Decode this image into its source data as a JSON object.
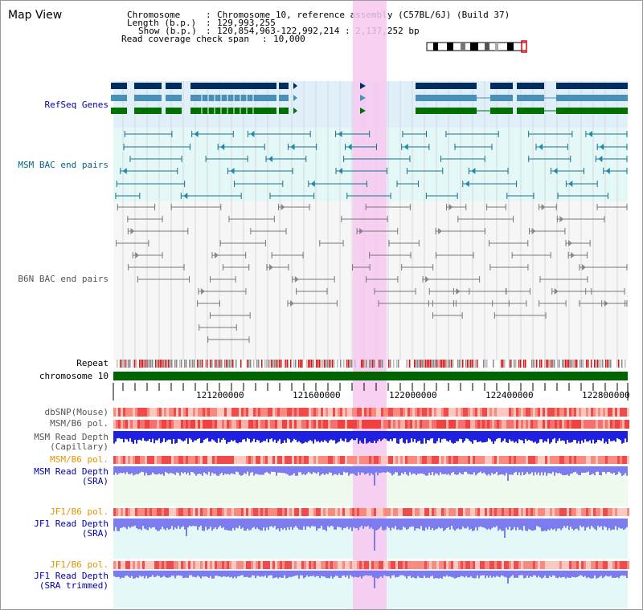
{
  "title": "Map View",
  "info": {
    "chromosome_key": "Chromosome",
    "chromosome_value": "Chromosome 10, reference assembly (C57BL/6J) (Build 37)",
    "length_key": "Length (b.p.)",
    "length_value": "129,993,255",
    "show_key": "Show (b.p.)",
    "show_value": "120,854,963-122,992,214 : 2,137,252 bp",
    "coverage_key": "Read coverage check span",
    "coverage_value": "10,000"
  },
  "tracks": {
    "refseq": "RefSeq Genes",
    "msm_bac": "MSM BAC end pairs",
    "b6n_bac": "B6N BAC end pairs",
    "repeat": "Repeat",
    "chromosome": "chromosome 10",
    "dbsnp": "dbSNP(Mouse)",
    "msm_b6_pol_1": "MSM/B6 pol.",
    "msm_depth_cap_1": "MSM Read Depth",
    "msm_depth_cap_2": "(Capillary)",
    "msm_b6_pol_2": "MSM/B6 pol.",
    "msm_depth_sra_1": "MSM Read Depth",
    "msm_depth_sra_2": "(SRA)",
    "jf1_b6_pol_1": "JF1/B6 pol.",
    "jf1_depth_sra_1": "JF1 Read Depth",
    "jf1_depth_sra_2": "(SRA)",
    "jf1_b6_pol_2": "JF1/B6 pol.",
    "jf1_depth_trim_1": "JF1 Read Depth",
    "jf1_depth_trim_2": "(SRA trimmed)"
  },
  "axis_ticks": [
    "121200000",
    "121600000",
    "122000000",
    "122400000",
    "122800000"
  ],
  "colors": {
    "refseq_navy": "#002d5f",
    "refseq_light": "#4a8fb5",
    "refseq_green": "#007000",
    "highlight": "#f7c8f0",
    "chromosome_bar": "#006400",
    "snp_red": "#ef3c3c",
    "depth_blue": "#2020e0",
    "depth_light": "#7c7cf0"
  }
}
